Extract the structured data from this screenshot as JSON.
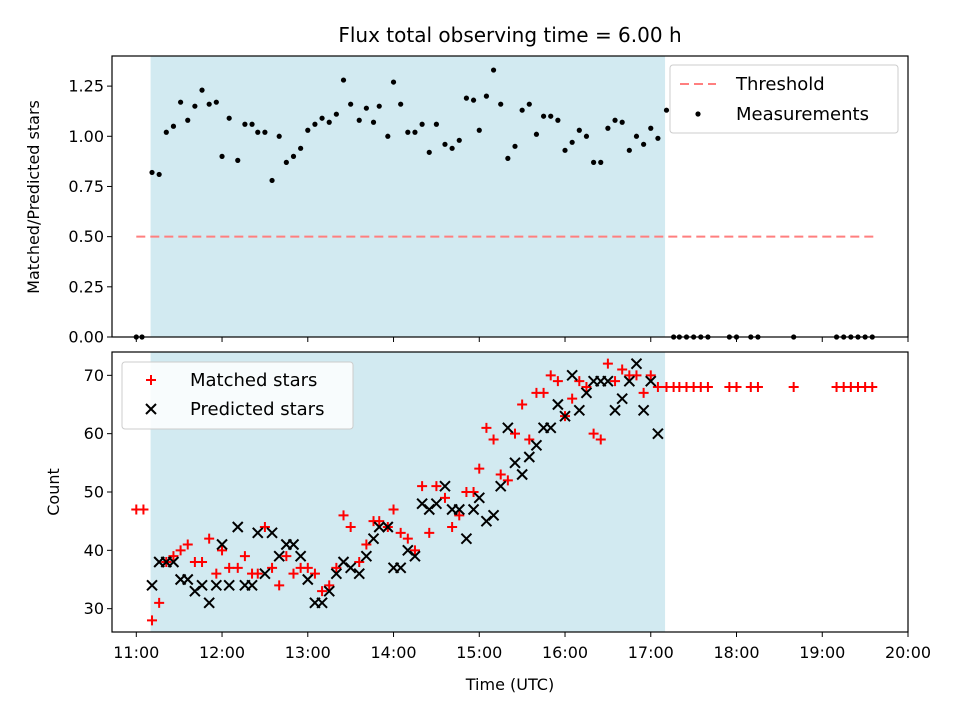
{
  "colors": {
    "shade": "#add8e6",
    "threshold": "#ff7f7f",
    "measure": "#000000",
    "matched": "#ff0000",
    "predicted": "#000000"
  },
  "chart_data": [
    {
      "type": "scatter",
      "title": "Flux total observing time = 6.00 h",
      "xlabel": "",
      "ylabel": "Matched/Predicted stars",
      "xlim": [
        "10:43",
        "20:00"
      ],
      "ylim": [
        0,
        1.4
      ],
      "yticks": [
        "0.00",
        "0.25",
        "0.50",
        "0.75",
        "1.00",
        "1.25"
      ],
      "shaded_region": {
        "start": "11:10",
        "end": "17:10"
      },
      "legend": {
        "position": "top-right",
        "entries": [
          "Threshold",
          "Measurements"
        ]
      },
      "threshold": {
        "name": "Threshold",
        "style": "dashed",
        "y": 0.5,
        "x_start": "11:00",
        "x_end": "19:36"
      },
      "series": [
        {
          "name": "Measurements",
          "points": [
            [
              "11:00",
              0.0
            ],
            [
              "11:04",
              0.0
            ],
            [
              "11:11",
              0.82
            ],
            [
              "11:16",
              0.81
            ],
            [
              "11:21",
              1.02
            ],
            [
              "11:26",
              1.05
            ],
            [
              "11:31",
              1.17
            ],
            [
              "11:36",
              1.08
            ],
            [
              "11:41",
              1.15
            ],
            [
              "11:46",
              1.23
            ],
            [
              "11:51",
              1.16
            ],
            [
              "11:56",
              1.17
            ],
            [
              "12:00",
              0.9
            ],
            [
              "12:05",
              1.09
            ],
            [
              "12:11",
              0.88
            ],
            [
              "12:16",
              1.06
            ],
            [
              "12:21",
              1.06
            ],
            [
              "12:25",
              1.02
            ],
            [
              "12:30",
              1.02
            ],
            [
              "12:35",
              0.78
            ],
            [
              "12:40",
              1.0
            ],
            [
              "12:45",
              0.87
            ],
            [
              "12:50",
              0.9
            ],
            [
              "12:55",
              0.94
            ],
            [
              "13:00",
              1.03
            ],
            [
              "13:05",
              1.06
            ],
            [
              "13:10",
              1.09
            ],
            [
              "13:15",
              1.07
            ],
            [
              "13:20",
              1.11
            ],
            [
              "13:25",
              1.28
            ],
            [
              "13:30",
              1.16
            ],
            [
              "13:36",
              1.08
            ],
            [
              "13:41",
              1.14
            ],
            [
              "13:46",
              1.07
            ],
            [
              "13:50",
              1.15
            ],
            [
              "13:56",
              1.0
            ],
            [
              "14:00",
              1.27
            ],
            [
              "14:05",
              1.16
            ],
            [
              "14:10",
              1.02
            ],
            [
              "14:15",
              1.02
            ],
            [
              "14:20",
              1.06
            ],
            [
              "14:25",
              0.92
            ],
            [
              "14:30",
              1.06
            ],
            [
              "14:36",
              0.96
            ],
            [
              "14:41",
              0.94
            ],
            [
              "14:46",
              0.98
            ],
            [
              "14:51",
              1.19
            ],
            [
              "14:56",
              1.18
            ],
            [
              "15:00",
              1.03
            ],
            [
              "15:05",
              1.2
            ],
            [
              "15:10",
              1.33
            ],
            [
              "15:15",
              1.16
            ],
            [
              "15:20",
              0.89
            ],
            [
              "15:25",
              0.95
            ],
            [
              "15:30",
              1.13
            ],
            [
              "15:35",
              1.16
            ],
            [
              "15:40",
              1.01
            ],
            [
              "15:45",
              1.1
            ],
            [
              "15:50",
              1.1
            ],
            [
              "15:55",
              1.08
            ],
            [
              "16:00",
              0.93
            ],
            [
              "16:05",
              0.97
            ],
            [
              "16:10",
              1.03
            ],
            [
              "16:15",
              1.0
            ],
            [
              "16:20",
              0.87
            ],
            [
              "16:25",
              0.87
            ],
            [
              "16:30",
              1.04
            ],
            [
              "16:35",
              1.08
            ],
            [
              "16:40",
              1.07
            ],
            [
              "16:45",
              0.93
            ],
            [
              "16:50",
              1.0
            ],
            [
              "16:55",
              0.96
            ],
            [
              "17:00",
              1.04
            ],
            [
              "17:05",
              0.99
            ],
            [
              "17:11",
              1.13
            ],
            [
              "17:16",
              0.0
            ],
            [
              "17:20",
              0.0
            ],
            [
              "17:25",
              0.0
            ],
            [
              "17:30",
              0.0
            ],
            [
              "17:35",
              0.0
            ],
            [
              "17:40",
              0.0
            ],
            [
              "17:55",
              0.0
            ],
            [
              "18:00",
              0.0
            ],
            [
              "18:10",
              0.0
            ],
            [
              "18:15",
              0.0
            ],
            [
              "18:40",
              0.0
            ],
            [
              "19:10",
              0.0
            ],
            [
              "19:15",
              0.0
            ],
            [
              "19:20",
              0.0
            ],
            [
              "19:25",
              0.0
            ],
            [
              "19:30",
              0.0
            ],
            [
              "19:35",
              0.0
            ]
          ]
        }
      ]
    },
    {
      "type": "scatter",
      "title": "",
      "xlabel": "Time (UTC)",
      "ylabel": "Count",
      "xlim": [
        "10:43",
        "20:00"
      ],
      "ylim": [
        26,
        74
      ],
      "yticks": [
        "30",
        "40",
        "50",
        "60",
        "70"
      ],
      "xticks": [
        "11:00",
        "12:00",
        "13:00",
        "14:00",
        "15:00",
        "16:00",
        "17:00",
        "18:00",
        "19:00",
        "20:00"
      ],
      "shaded_region": {
        "start": "11:10",
        "end": "17:10"
      },
      "legend": {
        "position": "top-left",
        "entries": [
          "Matched stars",
          "Predicted stars"
        ]
      },
      "series": [
        {
          "name": "Matched stars",
          "marker": "+",
          "points": [
            [
              "11:00",
              47
            ],
            [
              "11:05",
              47
            ],
            [
              "11:11",
              28
            ],
            [
              "11:16",
              31
            ],
            [
              "11:21",
              38
            ],
            [
              "11:26",
              39
            ],
            [
              "11:31",
              40
            ],
            [
              "11:36",
              41
            ],
            [
              "11:41",
              38
            ],
            [
              "11:46",
              38
            ],
            [
              "11:51",
              42
            ],
            [
              "11:56",
              36
            ],
            [
              "12:00",
              40
            ],
            [
              "12:05",
              37
            ],
            [
              "12:11",
              37
            ],
            [
              "12:16",
              39
            ],
            [
              "12:21",
              36
            ],
            [
              "12:25",
              36
            ],
            [
              "12:30",
              44
            ],
            [
              "12:35",
              37
            ],
            [
              "12:40",
              34
            ],
            [
              "12:45",
              39
            ],
            [
              "12:50",
              36
            ],
            [
              "12:55",
              37
            ],
            [
              "13:00",
              37
            ],
            [
              "13:05",
              36
            ],
            [
              "13:10",
              33
            ],
            [
              "13:15",
              34
            ],
            [
              "13:20",
              37
            ],
            [
              "13:25",
              46
            ],
            [
              "13:30",
              44
            ],
            [
              "13:36",
              38
            ],
            [
              "13:41",
              41
            ],
            [
              "13:46",
              45
            ],
            [
              "13:50",
              45
            ],
            [
              "13:56",
              44
            ],
            [
              "14:00",
              47
            ],
            [
              "14:05",
              43
            ],
            [
              "14:10",
              42
            ],
            [
              "14:15",
              40
            ],
            [
              "14:20",
              51
            ],
            [
              "14:25",
              43
            ],
            [
              "14:30",
              51
            ],
            [
              "14:36",
              49
            ],
            [
              "14:41",
              44
            ],
            [
              "14:46",
              46
            ],
            [
              "14:51",
              50
            ],
            [
              "14:56",
              50
            ],
            [
              "15:00",
              54
            ],
            [
              "15:05",
              61
            ],
            [
              "15:10",
              59
            ],
            [
              "15:15",
              53
            ],
            [
              "15:20",
              52
            ],
            [
              "15:25",
              60
            ],
            [
              "15:30",
              65
            ],
            [
              "15:35",
              59
            ],
            [
              "15:40",
              67
            ],
            [
              "15:45",
              67
            ],
            [
              "15:50",
              70
            ],
            [
              "15:55",
              69
            ],
            [
              "16:00",
              63
            ],
            [
              "16:05",
              66
            ],
            [
              "16:10",
              69
            ],
            [
              "16:15",
              68
            ],
            [
              "16:20",
              60
            ],
            [
              "16:25",
              59
            ],
            [
              "16:30",
              72
            ],
            [
              "16:35",
              69
            ],
            [
              "16:40",
              71
            ],
            [
              "16:45",
              70
            ],
            [
              "16:50",
              70
            ],
            [
              "16:55",
              67
            ],
            [
              "17:00",
              70
            ],
            [
              "17:05",
              68
            ],
            [
              "17:11",
              68
            ],
            [
              "17:16",
              68
            ],
            [
              "17:20",
              68
            ],
            [
              "17:25",
              68
            ],
            [
              "17:30",
              68
            ],
            [
              "17:35",
              68
            ],
            [
              "17:40",
              68
            ],
            [
              "17:55",
              68
            ],
            [
              "18:00",
              68
            ],
            [
              "18:10",
              68
            ],
            [
              "18:15",
              68
            ],
            [
              "18:40",
              68
            ],
            [
              "19:10",
              68
            ],
            [
              "19:15",
              68
            ],
            [
              "19:20",
              68
            ],
            [
              "19:25",
              68
            ],
            [
              "19:30",
              68
            ],
            [
              "19:35",
              68
            ]
          ]
        },
        {
          "name": "Predicted stars",
          "marker": "x",
          "points": [
            [
              "11:11",
              34
            ],
            [
              "11:16",
              38
            ],
            [
              "11:21",
              38
            ],
            [
              "11:26",
              38
            ],
            [
              "11:31",
              35
            ],
            [
              "11:36",
              35
            ],
            [
              "11:41",
              33
            ],
            [
              "11:46",
              34
            ],
            [
              "11:51",
              31
            ],
            [
              "11:56",
              34
            ],
            [
              "12:00",
              41
            ],
            [
              "12:05",
              34
            ],
            [
              "12:11",
              44
            ],
            [
              "12:16",
              34
            ],
            [
              "12:21",
              34
            ],
            [
              "12:25",
              43
            ],
            [
              "12:30",
              36
            ],
            [
              "12:35",
              43
            ],
            [
              "12:40",
              39
            ],
            [
              "12:45",
              41
            ],
            [
              "12:50",
              41
            ],
            [
              "12:55",
              39
            ],
            [
              "13:00",
              35
            ],
            [
              "13:05",
              31
            ],
            [
              "13:10",
              31
            ],
            [
              "13:15",
              33
            ],
            [
              "13:20",
              36
            ],
            [
              "13:25",
              38
            ],
            [
              "13:30",
              37
            ],
            [
              "13:36",
              36
            ],
            [
              "13:41",
              39
            ],
            [
              "13:46",
              42
            ],
            [
              "13:50",
              44
            ],
            [
              "13:56",
              44
            ],
            [
              "14:00",
              37
            ],
            [
              "14:05",
              37
            ],
            [
              "14:10",
              40
            ],
            [
              "14:15",
              39
            ],
            [
              "14:20",
              48
            ],
            [
              "14:25",
              47
            ],
            [
              "14:30",
              48
            ],
            [
              "14:36",
              51
            ],
            [
              "14:41",
              47
            ],
            [
              "14:46",
              47
            ],
            [
              "14:51",
              42
            ],
            [
              "14:56",
              47
            ],
            [
              "15:00",
              49
            ],
            [
              "15:05",
              45
            ],
            [
              "15:10",
              46
            ],
            [
              "15:15",
              51
            ],
            [
              "15:20",
              61
            ],
            [
              "15:25",
              55
            ],
            [
              "15:30",
              53
            ],
            [
              "15:35",
              56
            ],
            [
              "15:40",
              58
            ],
            [
              "15:45",
              61
            ],
            [
              "15:50",
              61
            ],
            [
              "15:55",
              65
            ],
            [
              "16:00",
              63
            ],
            [
              "16:05",
              70
            ],
            [
              "16:10",
              64
            ],
            [
              "16:15",
              67
            ],
            [
              "16:20",
              69
            ],
            [
              "16:25",
              69
            ],
            [
              "16:30",
              69
            ],
            [
              "16:35",
              64
            ],
            [
              "16:40",
              66
            ],
            [
              "16:45",
              69
            ],
            [
              "16:50",
              72
            ],
            [
              "16:55",
              64
            ],
            [
              "17:00",
              69
            ],
            [
              "17:05",
              60
            ]
          ]
        }
      ]
    }
  ]
}
